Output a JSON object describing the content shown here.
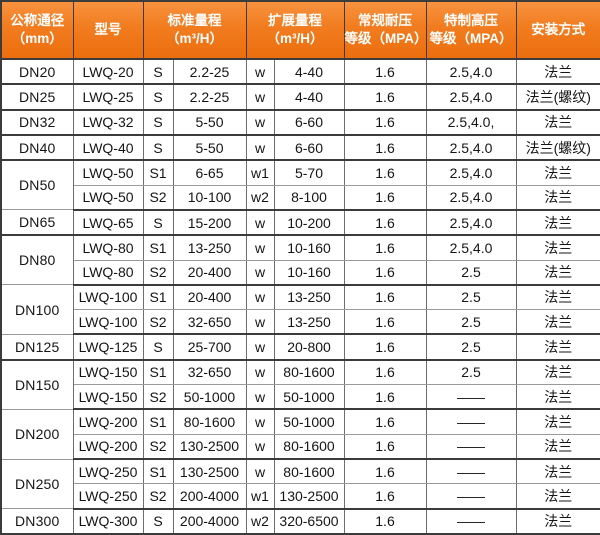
{
  "table": {
    "headers": {
      "col_dn": {
        "line1": "公称通径",
        "line2": "（mm）"
      },
      "col_model": {
        "line1": "型号"
      },
      "col_std": {
        "line1": "标准量程",
        "line2": "（m³/H）"
      },
      "col_ext": {
        "line1": "扩展量程",
        "line2": "（m³/H）"
      },
      "col_normal": {
        "line1": "常规耐压",
        "line2": "等级（MPA）"
      },
      "col_high": {
        "line1": "特制高压",
        "line2": "等级（MPA）"
      },
      "col_install": {
        "line1": "安装方式"
      }
    },
    "rows": [
      {
        "dn": "DN20",
        "dn_rowspan": 1,
        "model": "LWQ-20",
        "s_label": "S",
        "std_range": "2.2-25",
        "w_label": "w",
        "ext_range": "4-40",
        "normal_mpa": "1.6",
        "high_mpa": "2.5,4.0",
        "install": "法兰",
        "group_end": true
      },
      {
        "dn": "DN25",
        "dn_rowspan": 1,
        "model": "LWQ-25",
        "s_label": "S",
        "std_range": "2.2-25",
        "w_label": "w",
        "ext_range": "4-40",
        "normal_mpa": "1.6",
        "high_mpa": "2.5,4.0",
        "install": "法兰(螺纹)",
        "group_end": true
      },
      {
        "dn": "DN32",
        "dn_rowspan": 1,
        "model": "LWQ-32",
        "s_label": "S",
        "std_range": "5-50",
        "w_label": "w",
        "ext_range": "6-60",
        "normal_mpa": "1.6",
        "high_mpa": "2.5,4.0,",
        "install": "法兰",
        "group_end": true
      },
      {
        "dn": "DN40",
        "dn_rowspan": 1,
        "model": "LWQ-40",
        "s_label": "S",
        "std_range": "5-50",
        "w_label": "w",
        "ext_range": "6-60",
        "normal_mpa": "1.6",
        "high_mpa": "2.5,4.0",
        "install": "法兰(螺纹)",
        "group_end": true
      },
      {
        "dn": "DN50",
        "dn_rowspan": 2,
        "model": "LWQ-50",
        "s_label": "S1",
        "std_range": "6-65",
        "w_label": "w1",
        "ext_range": "5-70",
        "normal_mpa": "1.6",
        "high_mpa": "2.5,4.0",
        "install": "法兰",
        "group_end": false
      },
      {
        "dn": null,
        "dn_rowspan": 0,
        "model": "LWQ-50",
        "s_label": "S2",
        "std_range": "10-100",
        "w_label": "w2",
        "ext_range": "8-100",
        "normal_mpa": "1.6",
        "high_mpa": "2.5,4.0",
        "install": "法兰",
        "group_end": true
      },
      {
        "dn": "DN65",
        "dn_rowspan": 1,
        "model": "LWQ-65",
        "s_label": "S",
        "std_range": "15-200",
        "w_label": "w",
        "ext_range": "10-200",
        "normal_mpa": "1.6",
        "high_mpa": "2.5,4.0",
        "install": "法兰",
        "group_end": true
      },
      {
        "dn": "DN80",
        "dn_rowspan": 2,
        "model": "LWQ-80",
        "s_label": "S1",
        "std_range": "13-250",
        "w_label": "w",
        "ext_range": "10-160",
        "normal_mpa": "1.6",
        "high_mpa": "2.5,4.0",
        "install": "法兰",
        "group_end": false
      },
      {
        "dn": null,
        "dn_rowspan": 0,
        "model": "LWQ-80",
        "s_label": "S2",
        "std_range": "20-400",
        "w_label": "w",
        "ext_range": "10-160",
        "normal_mpa": "1.6",
        "high_mpa": "2.5",
        "install": "法兰",
        "group_end": true
      },
      {
        "dn": "DN100",
        "dn_rowspan": 2,
        "model": "LWQ-100",
        "s_label": "S1",
        "std_range": "20-400",
        "w_label": "w",
        "ext_range": "13-250",
        "normal_mpa": "1.6",
        "high_mpa": "2.5",
        "install": "法兰",
        "group_end": false
      },
      {
        "dn": null,
        "dn_rowspan": 0,
        "model": "LWQ-100",
        "s_label": "S2",
        "std_range": "32-650",
        "w_label": "w",
        "ext_range": "13-250",
        "normal_mpa": "1.6",
        "high_mpa": "2.5",
        "install": "法兰",
        "group_end": true
      },
      {
        "dn": "DN125",
        "dn_rowspan": 1,
        "model": "LWQ-125",
        "s_label": "S",
        "std_range": "25-700",
        "w_label": "w",
        "ext_range": "20-800",
        "normal_mpa": "1.6",
        "high_mpa": "2.5",
        "install": "法兰",
        "group_end": true
      },
      {
        "dn": "DN150",
        "dn_rowspan": 2,
        "model": "LWQ-150",
        "s_label": "S1",
        "std_range": "32-650",
        "w_label": "w",
        "ext_range": "80-1600",
        "normal_mpa": "1.6",
        "high_mpa": "2.5",
        "install": "法兰",
        "group_end": false
      },
      {
        "dn": null,
        "dn_rowspan": 0,
        "model": "LWQ-150",
        "s_label": "S2",
        "std_range": "50-1000",
        "w_label": "w",
        "ext_range": "50-1000",
        "normal_mpa": "1.6",
        "high_mpa": "——",
        "install": "法兰",
        "group_end": true
      },
      {
        "dn": "DN200",
        "dn_rowspan": 2,
        "model": "LWQ-200",
        "s_label": "S1",
        "std_range": "80-1600",
        "w_label": "w",
        "ext_range": "50-1000",
        "normal_mpa": "1.6",
        "high_mpa": "——",
        "install": "法兰",
        "group_end": false
      },
      {
        "dn": null,
        "dn_rowspan": 0,
        "model": "LWQ-200",
        "s_label": "S2",
        "std_range": "130-2500",
        "w_label": "w",
        "ext_range": "80-1600",
        "normal_mpa": "1.6",
        "high_mpa": "——",
        "install": "法兰",
        "group_end": true
      },
      {
        "dn": "DN250",
        "dn_rowspan": 2,
        "model": "LWQ-250",
        "s_label": "S1",
        "std_range": "130-2500",
        "w_label": "w",
        "ext_range": "80-1600",
        "normal_mpa": "1.6",
        "high_mpa": "——",
        "install": "法兰",
        "group_end": false
      },
      {
        "dn": null,
        "dn_rowspan": 0,
        "model": "LWQ-250",
        "s_label": "S2",
        "std_range": "200-4000",
        "w_label": "w1",
        "ext_range": "130-2500",
        "normal_mpa": "1.6",
        "high_mpa": "——",
        "install": "法兰",
        "group_end": true
      },
      {
        "dn": "DN300",
        "dn_rowspan": 1,
        "model": "LWQ-300",
        "s_label": "S",
        "std_range": "200-4000",
        "w_label": "w2",
        "ext_range": "320-6500",
        "normal_mpa": "1.6",
        "high_mpa": "——",
        "install": "法兰",
        "group_end": true
      }
    ]
  },
  "colors": {
    "header_orange_top": "#f8923f",
    "header_orange_bottom": "#ec6e0e",
    "header_text": "#ffffff",
    "body_text": "#151515",
    "border_dark": "#3b3b3b"
  }
}
